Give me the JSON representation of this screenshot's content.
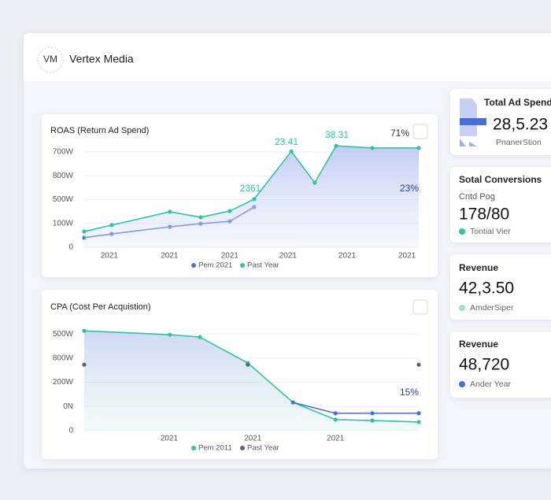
{
  "header": {
    "logo": "VM",
    "title": "Vertex Media"
  },
  "chart_data": [
    {
      "type": "line",
      "title": "ROAS (Return Ad Spend)",
      "x": [
        0,
        0.82,
        2.56,
        3.48,
        4.35,
        5.08,
        6.19,
        6.89,
        7.53,
        8.61,
        10
      ],
      "xlim": [
        0,
        10
      ],
      "xticks": [
        {
          "value": 0.75,
          "label": "2021"
        },
        {
          "value": 2.55,
          "label": "2021"
        },
        {
          "value": 4.35,
          "label": "2021"
        },
        {
          "value": 6.09,
          "label": "2021"
        },
        {
          "value": 7.86,
          "label": "2021"
        },
        {
          "value": 9.65,
          "label": "2021"
        }
      ],
      "ylim": [
        0,
        430
      ],
      "yticks": [
        0,
        {
          "value": 100,
          "label": "100W"
        },
        {
          "value": 200,
          "label": "500W"
        },
        {
          "value": 300,
          "label": "800W"
        },
        {
          "value": 400,
          "label": "700W"
        }
      ],
      "grid": true,
      "series": [
        {
          "name": "Pem 2021",
          "color": "#4a6fd6",
          "values": [
            40,
            56,
            86,
            99,
            109,
            169,
            null,
            null,
            null,
            null,
            null
          ]
        },
        {
          "name": "Past Year",
          "color": "#2ec4a0",
          "fill": true,
          "values": [
            66,
            93,
            149,
            126,
            152,
            202,
            403,
            271,
            426,
            417,
            417
          ]
        }
      ],
      "annotations": [
        "23.41",
        "38.31",
        "71%",
        "2361",
        "23%"
      ]
    },
    {
      "type": "line",
      "title": "CPA (Cost Per Acquistion)",
      "x": [
        0,
        2.56,
        3.46,
        4.89,
        6.24,
        7.51,
        8.61,
        10
      ],
      "xlim": [
        0,
        10
      ],
      "xticks": [
        {
          "value": 2.54,
          "label": "2021"
        },
        {
          "value": 5.04,
          "label": "2021"
        },
        {
          "value": 7.51,
          "label": "2021"
        }
      ],
      "ylim": [
        0,
        420
      ],
      "yticks": [
        0,
        {
          "value": 100,
          "label": "0N"
        },
        {
          "value": 200,
          "label": "200W"
        },
        {
          "value": 300,
          "label": "800W"
        },
        {
          "value": 400,
          "label": "500W"
        }
      ],
      "grid": true,
      "series": [
        {
          "name": "Pem 2011",
          "color": "#2ec4a0",
          "fill": true,
          "values": [
            413,
            397,
            387,
            280,
            117,
            46,
            42,
            36
          ]
        },
        {
          "name": "Past Year",
          "color": "#5c6578",
          "values": [
            273,
            null,
            null,
            273,
            null,
            null,
            null,
            273
          ]
        },
        {
          "color": "#4a6fd6",
          "values": [
            null,
            null,
            null,
            null,
            117,
            72,
            72,
            72
          ]
        }
      ],
      "annotations": [
        "15%"
      ]
    }
  ],
  "cards": [
    {
      "title": "Total Ad Spend",
      "value": "28,5.23",
      "subtitle": "PnanerStion"
    },
    {
      "title": "Sotal Conversions",
      "caption": "Cntd Pog",
      "value": "178/80",
      "subtitle": "Tontial Vier"
    },
    {
      "title": "Revenue",
      "value": "42,3.50",
      "subtitle": "AmderSiper"
    },
    {
      "title": "Revenue",
      "value": "48,720",
      "subtitle": "Ander Year"
    }
  ]
}
